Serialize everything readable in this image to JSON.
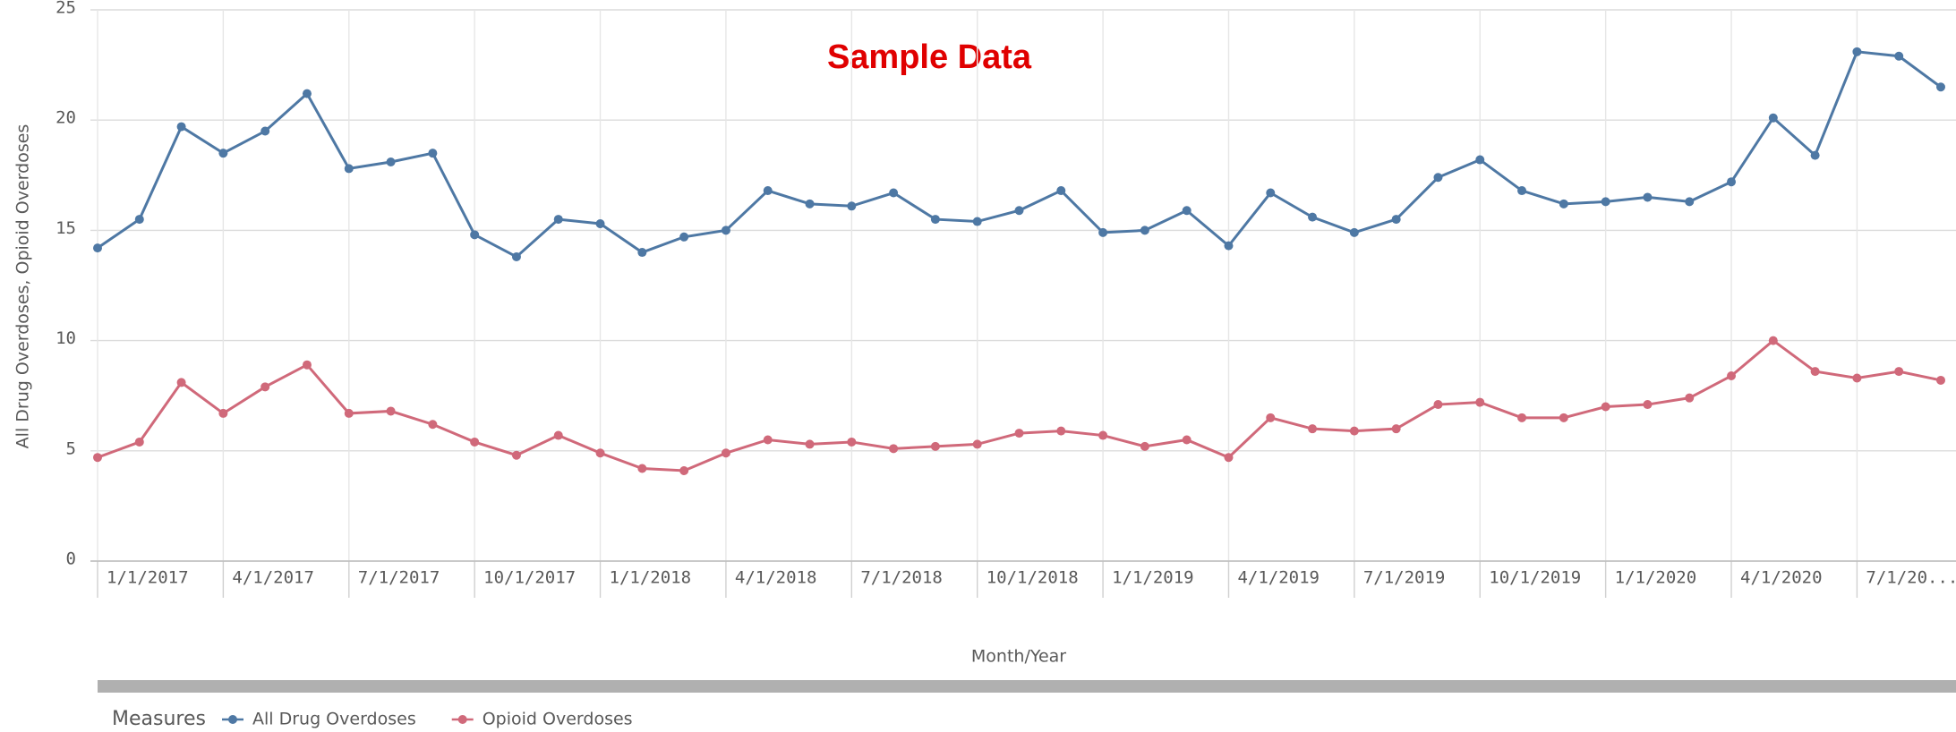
{
  "chart_data": {
    "type": "line",
    "title": "Sample Data",
    "x_label": "Month/Year",
    "y_label": "All Drug Overdoses, Opioid Overdoses",
    "legend_title": "Measures",
    "legend": "bottom-left",
    "grid": true,
    "categories": [
      "1/1/2017",
      null,
      null,
      "4/1/2017",
      null,
      null,
      "7/1/2017",
      null,
      null,
      "10/1/2017",
      null,
      null,
      "1/1/2018",
      null,
      null,
      "4/1/2018",
      null,
      null,
      "7/1/2018",
      null,
      null,
      "10/1/2018",
      null,
      null,
      "1/1/2019",
      null,
      null,
      "4/1/2019",
      null,
      null,
      "7/1/2019",
      null,
      null,
      "10/1/2019",
      null,
      null,
      "1/1/2020",
      null,
      null,
      "4/1/2020",
      null,
      null,
      "7/1/20...",
      null,
      null
    ],
    "ylim": [
      0,
      25
    ],
    "yticks": [
      0,
      5,
      10,
      15,
      20,
      25
    ],
    "series": [
      {
        "name": "All Drug Overdoses",
        "color": "#4e78a4",
        "values": [
          14.2,
          15.5,
          19.7,
          18.5,
          19.5,
          21.2,
          17.8,
          18.1,
          18.5,
          14.8,
          13.8,
          15.5,
          15.3,
          14.0,
          14.7,
          15.0,
          16.8,
          16.2,
          16.1,
          16.7,
          15.5,
          15.4,
          15.9,
          16.8,
          14.9,
          15.0,
          15.9,
          14.3,
          16.7,
          15.6,
          14.9,
          15.5,
          17.4,
          18.2,
          16.8,
          16.2,
          16.3,
          16.5,
          16.3,
          17.2,
          20.1,
          18.4,
          23.1,
          22.9,
          21.5
        ]
      },
      {
        "name": "Opioid Overdoses",
        "color": "#d0697a",
        "values": [
          4.7,
          5.4,
          8.1,
          6.7,
          7.9,
          8.9,
          6.7,
          6.8,
          6.2,
          5.4,
          4.8,
          5.7,
          4.9,
          4.2,
          4.1,
          4.9,
          5.5,
          5.3,
          5.4,
          5.1,
          5.2,
          5.3,
          5.8,
          5.9,
          5.7,
          5.2,
          5.5,
          4.7,
          6.5,
          6.0,
          5.9,
          6.0,
          7.1,
          7.2,
          6.5,
          6.5,
          7.0,
          7.1,
          7.4,
          8.4,
          10.0,
          8.6,
          8.3,
          8.6,
          8.2
        ]
      }
    ]
  }
}
